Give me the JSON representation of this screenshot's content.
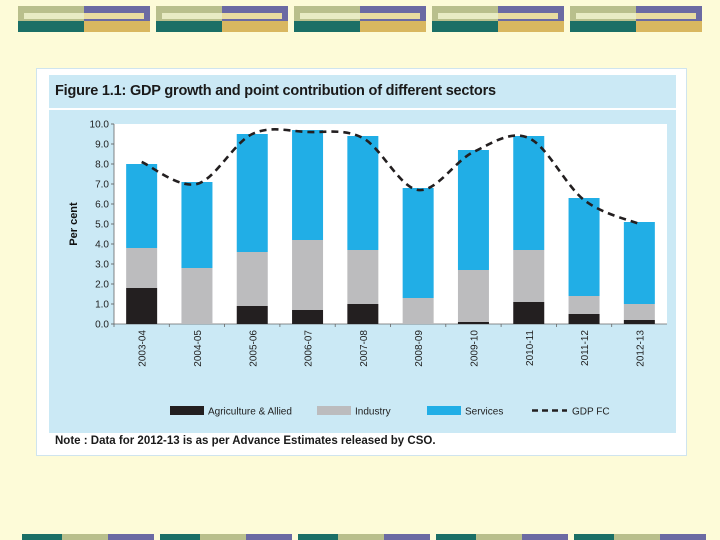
{
  "colors": {
    "page_bg": "#fdfbd8",
    "panel_bg": "#cbe9f5",
    "agriculture": "#231f20",
    "industry": "#bcbcbe",
    "services": "#21aee6",
    "gdp_line": "#231f20",
    "deco_teal": "#1b6f66",
    "deco_purple": "#6b6aa3",
    "deco_olive": "#b9bf8c",
    "deco_gold": "#d9b760"
  },
  "figure": {
    "title": "Figure 1.1:   GDP growth and point contribution of different sectors",
    "note": "Note  :  Data  for  2012-13  is  as  per  Advance  Estimates  released  by  CSO."
  },
  "chart_data": {
    "type": "bar",
    "stacked": true,
    "title": "Figure 1.1:   GDP growth and point contribution of different sectors",
    "ylabel": "Per cent",
    "xlabel": "",
    "ylim": [
      0,
      10
    ],
    "yticks": [
      "0.0",
      "1.0",
      "2.0",
      "3.0",
      "4.0",
      "5.0",
      "6.0",
      "7.0",
      "8.0",
      "9.0",
      "10.0"
    ],
    "categories": [
      "2003-04",
      "2004-05",
      "2005-06",
      "2006-07",
      "2007-08",
      "2008-09",
      "2009-10",
      "2010-11",
      "2011-12",
      "2012-13"
    ],
    "series": [
      {
        "name": "Agriculture & Allied",
        "type": "bar",
        "color_key": "agriculture",
        "values": [
          1.8,
          0.0,
          0.9,
          0.7,
          1.0,
          0.0,
          0.1,
          1.1,
          0.5,
          0.2
        ]
      },
      {
        "name": "Industry",
        "type": "bar",
        "color_key": "industry",
        "values": [
          2.0,
          2.8,
          2.7,
          3.5,
          2.7,
          1.3,
          2.6,
          2.6,
          0.9,
          0.8
        ]
      },
      {
        "name": "Services",
        "type": "bar",
        "color_key": "services",
        "values": [
          4.2,
          4.3,
          5.9,
          5.5,
          5.7,
          5.5,
          6.0,
          5.7,
          4.9,
          4.1
        ]
      },
      {
        "name": "GDP FC",
        "type": "line",
        "style": "dashed",
        "color_key": "gdp_line",
        "values": [
          8.1,
          7.0,
          9.5,
          9.6,
          9.3,
          6.7,
          8.6,
          9.3,
          6.2,
          5.0
        ]
      }
    ],
    "legend_position": "bottom"
  }
}
